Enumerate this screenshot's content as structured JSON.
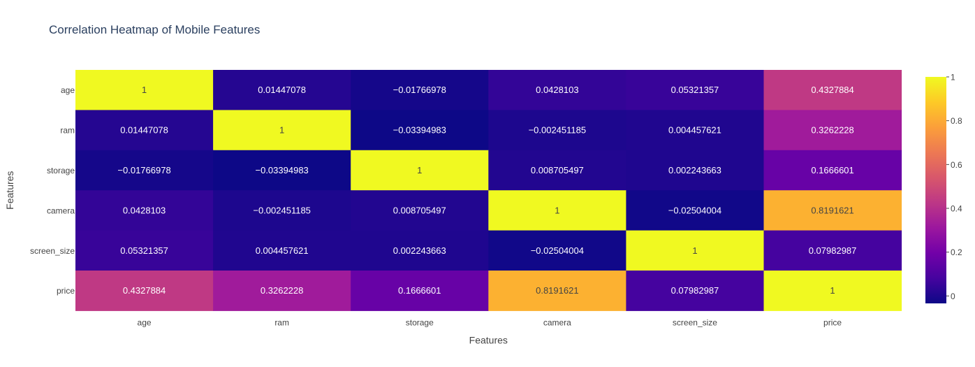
{
  "chart_data": {
    "type": "heatmap",
    "title": "Correlation Heatmap of Mobile Features",
    "xlabel": "Features",
    "ylabel": "Features",
    "x": [
      "age",
      "ram",
      "storage",
      "camera",
      "screen_size",
      "price"
    ],
    "y": [
      "age",
      "ram",
      "storage",
      "camera",
      "screen_size",
      "price"
    ],
    "z": [
      [
        1,
        0.01447078,
        -0.01766978,
        0.0428103,
        0.05321357,
        0.4327884
      ],
      [
        0.01447078,
        1,
        -0.03394983,
        -0.002451185,
        0.004457621,
        0.3262228
      ],
      [
        -0.01766978,
        -0.03394983,
        1,
        0.008705497,
        0.002243663,
        0.1666601
      ],
      [
        0.0428103,
        -0.002451185,
        0.008705497,
        1,
        -0.02504004,
        0.8191621
      ],
      [
        0.05321357,
        0.004457621,
        0.002243663,
        -0.02504004,
        1,
        0.07982987
      ],
      [
        0.4327884,
        0.3262228,
        0.1666601,
        0.8191621,
        0.07982987,
        1
      ]
    ],
    "text": [
      [
        "1",
        "0.01447078",
        "−0.01766978",
        "0.0428103",
        "0.05321357",
        "0.4327884"
      ],
      [
        "0.01447078",
        "1",
        "−0.03394983",
        "−0.002451185",
        "0.004457621",
        "0.3262228"
      ],
      [
        "−0.01766978",
        "−0.03394983",
        "1",
        "0.008705497",
        "0.002243663",
        "0.1666601"
      ],
      [
        "0.0428103",
        "−0.002451185",
        "0.008705497",
        "1",
        "−0.02504004",
        "0.8191621"
      ],
      [
        "0.05321357",
        "0.004457621",
        "0.002243663",
        "−0.02504004",
        "1",
        "0.07982987"
      ],
      [
        "0.4327884",
        "0.3262228",
        "0.1666601",
        "0.8191621",
        "0.07982987",
        "1"
      ]
    ],
    "zmin": -0.03394983,
    "zmax": 1,
    "colorscale": "plasma",
    "colorbar_ticks": [
      {
        "value": 0,
        "label": "0"
      },
      {
        "value": 0.2,
        "label": "0.2"
      },
      {
        "value": 0.4,
        "label": "0.4"
      },
      {
        "value": 0.6,
        "label": "0.6"
      },
      {
        "value": 0.8,
        "label": "0.8"
      },
      {
        "value": 1,
        "label": "1"
      }
    ]
  }
}
